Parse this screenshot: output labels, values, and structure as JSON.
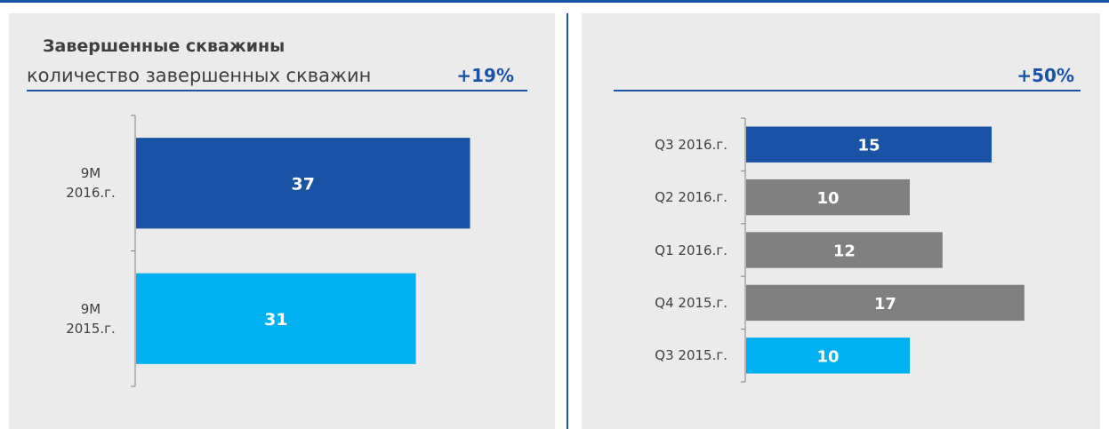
{
  "chart_data": [
    {
      "type": "bar",
      "orientation": "horizontal",
      "title": "Завершенные скважины",
      "subtitle": "количество завершенных скважин",
      "annotation": "+19%",
      "categories": [
        "9M 2016.г.",
        "9M 2015.г."
      ],
      "values": [
        37,
        31
      ],
      "colors": [
        "#1a52a5",
        "#00b0f0"
      ]
    },
    {
      "type": "bar",
      "orientation": "horizontal",
      "annotation": "+50%",
      "categories": [
        "Q3 2016.г.",
        "Q2 2016.г.",
        "Q1 2016.г.",
        "Q4 2015.г.",
        "Q3 2015.г."
      ],
      "values": [
        15,
        10,
        12,
        17,
        10
      ],
      "colors": [
        "#1a52a5",
        "#808080",
        "#808080",
        "#808080",
        "#00b0f0"
      ]
    }
  ]
}
